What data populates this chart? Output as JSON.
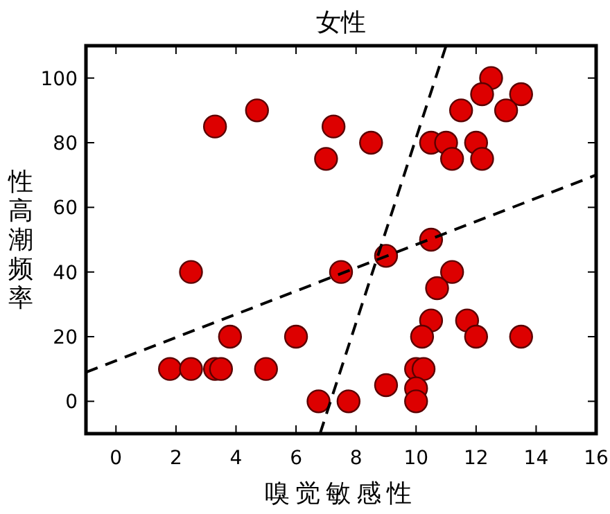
{
  "chart_data": {
    "type": "scatter",
    "title": "女性",
    "xlabel": "嗅觉敏感性",
    "ylabel": "性高潮频率",
    "xlim": [
      -1,
      16
    ],
    "ylim": [
      -10,
      110
    ],
    "xticks": [
      0,
      2,
      4,
      6,
      8,
      10,
      12,
      14,
      16
    ],
    "yticks": [
      0,
      20,
      40,
      60,
      80,
      100
    ],
    "grid": false,
    "marker": "circle",
    "series": [
      {
        "color": "#dd0000",
        "x": [
          3.3,
          4.7,
          7.25,
          7.0,
          2.5,
          7.5,
          3.8,
          6.0,
          1.8,
          2.5,
          3.3,
          3.5,
          5.0,
          6.75,
          7.75,
          8.5,
          12.5,
          12.2,
          13.5,
          11.5,
          13.0,
          10.5,
          11.0,
          12.0,
          11.2,
          12.2,
          10.5,
          9.0,
          11.2,
          10.7,
          10.5,
          11.7,
          10.2,
          12.0,
          13.5,
          10.0,
          10.25,
          9.0,
          10.0,
          10.0
        ],
        "values": [
          85,
          90,
          85,
          75,
          40,
          40,
          20,
          20,
          10,
          10,
          10,
          10,
          10,
          0,
          0,
          80,
          100,
          95,
          95,
          90,
          90,
          80,
          80,
          80,
          75,
          75,
          50,
          45,
          40,
          35,
          25,
          25,
          20,
          20,
          20,
          10,
          10,
          5,
          4,
          0
        ]
      },
      {
        "type": "line",
        "color": "#000000",
        "line_style": "dashed",
        "marker": "none",
        "x": [
          -1,
          16
        ],
        "values": [
          9,
          70
        ]
      },
      {
        "type": "line",
        "color": "#000000",
        "line_style": "dashed",
        "marker": "none",
        "x": [
          6.8,
          11
        ],
        "values": [
          -10,
          110
        ]
      }
    ]
  }
}
